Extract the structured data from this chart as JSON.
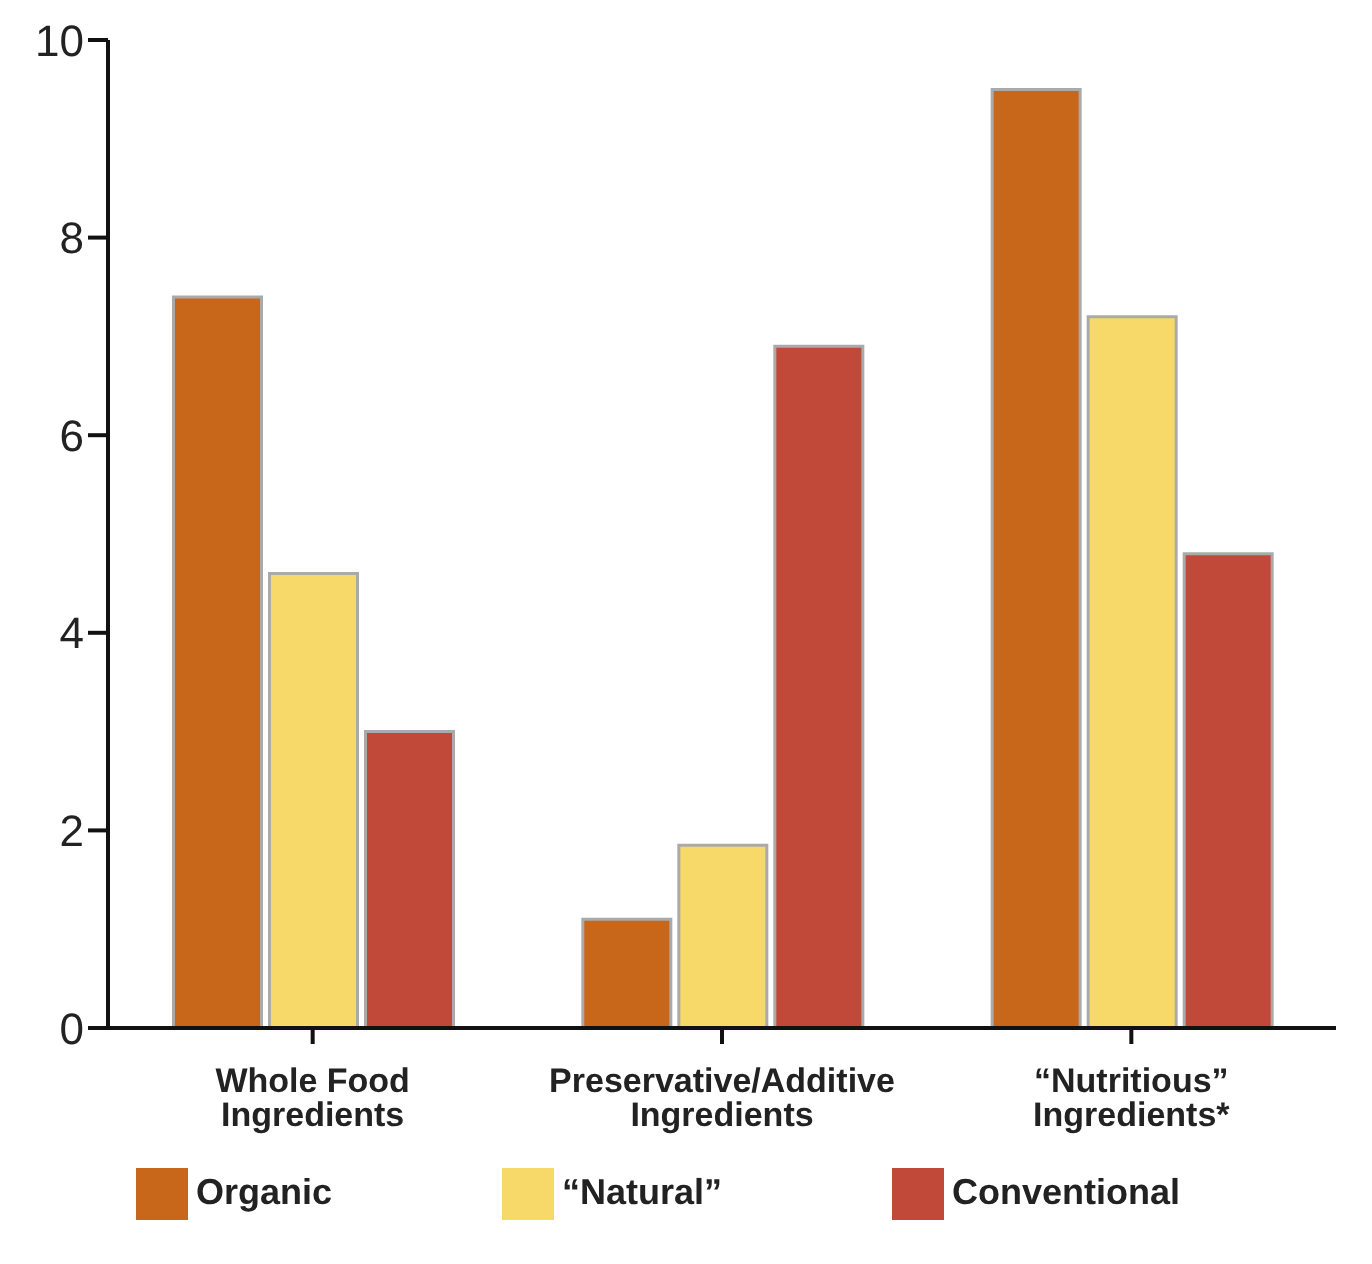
{
  "chart_data": {
    "type": "bar",
    "categories": [
      "Whole Food Ingredients",
      "Preservative/Additive Ingredients",
      "“Nutritious” Ingredients*"
    ],
    "series": [
      {
        "name": "Organic",
        "color": "#c8661a",
        "values": [
          7.4,
          1.1,
          9.5
        ]
      },
      {
        "name": "“Natural”",
        "color": "#f7d96a",
        "values": [
          4.6,
          1.85,
          7.2
        ]
      },
      {
        "name": "Conventional",
        "color": "#c0493a",
        "values": [
          3.0,
          6.9,
          4.8
        ]
      }
    ],
    "ylim": [
      0,
      10
    ],
    "yticks": [
      0,
      2,
      4,
      6,
      8,
      10
    ],
    "grid": false,
    "legend": "bottom"
  }
}
